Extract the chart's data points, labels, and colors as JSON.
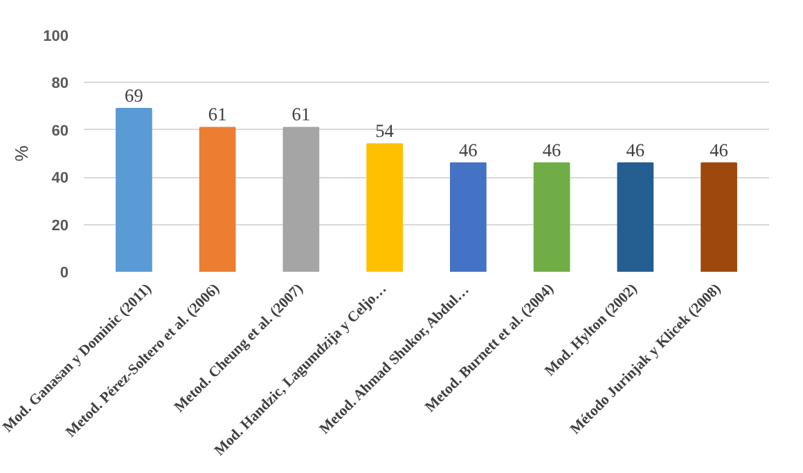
{
  "chart_data": {
    "type": "bar",
    "ylabel": "%",
    "categories": [
      "Mod. Ganasan y Dominic (2011)",
      "Metod. Pérez-Soltero et al. (2006)",
      "Metod. Cheung et al. (2007)",
      "Mod. Handzic, Lagumdzija y Celjo…",
      "Metod. Ahmad Shukor, Abdul…",
      "Metod. Burnett et al. (2004)",
      "Mod. Hylton (2002)",
      "Método Jurinjak y Klicek (2008)"
    ],
    "values": [
      69,
      61,
      61,
      54,
      46,
      46,
      46,
      46
    ],
    "colors": [
      "#5b9bd5",
      "#ed7d31",
      "#a5a5a5",
      "#ffc000",
      "#4472c4",
      "#70ad47",
      "#255e91",
      "#9e480e"
    ],
    "data_labels": true,
    "ylim": [
      0,
      100
    ],
    "yticks": [
      0,
      20,
      40,
      60,
      80,
      100
    ],
    "grid": "y"
  }
}
